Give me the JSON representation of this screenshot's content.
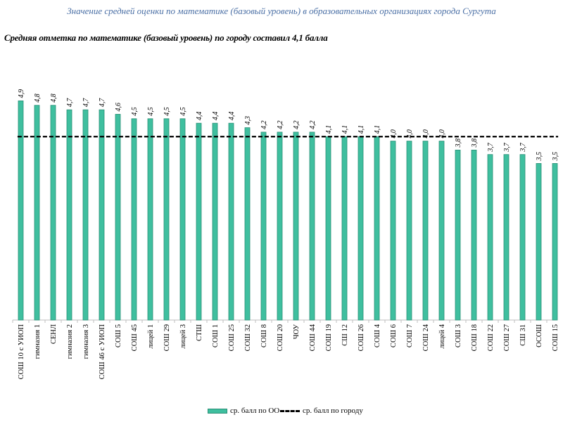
{
  "page": {
    "top_title": "Значение средней оценки по математике (базовый уровень) в образовательных организациях города Сургута",
    "subtitle": "Средняя отметка по математике (базовый уровень) по городу составил 4,1 балла"
  },
  "colors": {
    "bar": "#3fbf9f",
    "bar_edge": "#2a8f76",
    "city_line": "#000000",
    "axis": "#bfbfbf"
  },
  "chart_data": {
    "type": "bar",
    "title": "Средняя отметка по математике (базовый уровень) по городу составил 4,1 балла",
    "categories": [
      "СОШ 10 с УИОП",
      "гимназия 1",
      "СЕНЛ",
      "гимназия 2",
      "гимназия 3",
      "СОШ 46 с УИОП",
      "СОШ 5",
      "СОШ 45",
      "лицей 1",
      "СОШ 29",
      "лицей 3",
      "СТШ",
      "СОШ 1",
      "СОШ 25",
      "СОШ 32",
      "СОШ 8",
      "СОШ 20",
      "ЧОУ",
      "СОШ 44",
      "СОШ 19",
      "СШ 12",
      "СОШ 26",
      "СОШ 4",
      "СОШ 6",
      "СОШ 7",
      "СОШ 24",
      "лицей 4",
      "СОШ 3",
      "СОШ 18",
      "СОШ 22",
      "СОШ 27",
      "СШ 31",
      "ОСОШ",
      "СОШ 15"
    ],
    "series": [
      {
        "name": "ср. балл по ОО",
        "values": [
          4.9,
          4.8,
          4.8,
          4.7,
          4.7,
          4.7,
          4.6,
          4.5,
          4.5,
          4.5,
          4.5,
          4.4,
          4.4,
          4.4,
          4.3,
          4.2,
          4.2,
          4.2,
          4.2,
          4.1,
          4.1,
          4.1,
          4.1,
          4.0,
          4.0,
          4.0,
          4.0,
          3.8,
          3.8,
          3.7,
          3.7,
          3.7,
          3.5,
          3.5
        ]
      },
      {
        "name": "ср. балл по городу",
        "value": 4.1
      }
    ],
    "data_labels": [
      "4,9",
      "4,8",
      "4,8",
      "4,7",
      "4,7",
      "4,7",
      "4,6",
      "4,5",
      "4,5",
      "4,5",
      "4,5",
      "4,4",
      "4,4",
      "4,4",
      "4,3",
      "4,2",
      "4,2",
      "4,2",
      "4,2",
      "4,1",
      "4,1",
      "4,1",
      "4,1",
      "4,0",
      "4,0",
      "4,0",
      "4,0",
      "3,8",
      "3,8",
      "3,7",
      "3,7",
      "3,7",
      "3,5",
      "3,5"
    ],
    "ylim": [
      0,
      5
    ],
    "legend": [
      {
        "label": "ср. балл по ОО",
        "kind": "bar"
      },
      {
        "label": "ср. балл по городу",
        "kind": "dashed-line"
      }
    ],
    "legend_position": "bottom"
  }
}
